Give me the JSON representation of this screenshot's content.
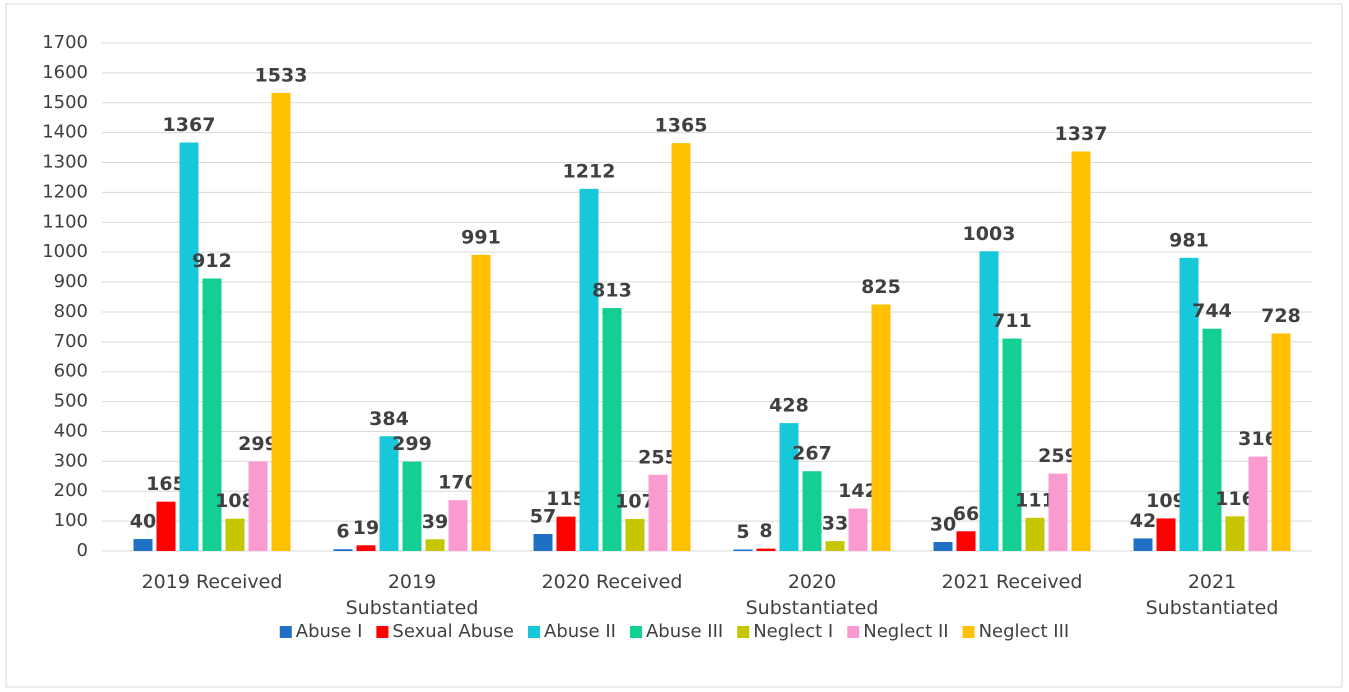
{
  "chart_data": {
    "type": "bar",
    "categories": [
      "2019 Received",
      "2019 Substantiated",
      "2020 Received",
      "2020 Substantiated",
      "2021 Received",
      "2021 Substantiated"
    ],
    "series": [
      {
        "name": "Abuse I",
        "color": "#1f6fc5",
        "values": [
          40,
          6,
          57,
          5,
          30,
          42
        ]
      },
      {
        "name": "Sexual Abuse",
        "color": "#ff0000",
        "values": [
          165,
          19,
          115,
          8,
          66,
          109
        ]
      },
      {
        "name": "Abuse II",
        "color": "#17c8d8",
        "values": [
          1367,
          384,
          1212,
          428,
          1003,
          981
        ]
      },
      {
        "name": "Abuse III",
        "color": "#13cf93",
        "values": [
          912,
          299,
          813,
          267,
          711,
          744
        ]
      },
      {
        "name": "Neglect I",
        "color": "#c6c600",
        "values": [
          108,
          39,
          107,
          33,
          111,
          116
        ]
      },
      {
        "name": "Neglect II",
        "color": "#f99bd0",
        "values": [
          299,
          170,
          255,
          142,
          259,
          316
        ]
      },
      {
        "name": "Neglect III",
        "color": "#ffc000",
        "values": [
          1533,
          991,
          1365,
          825,
          1337,
          728
        ]
      }
    ],
    "ylim": [
      0,
      1700
    ],
    "yticks": [
      0,
      100,
      200,
      300,
      400,
      500,
      600,
      700,
      800,
      900,
      1000,
      1100,
      1200,
      1300,
      1400,
      1500,
      1600,
      1700
    ],
    "grid": true,
    "legend": "bottom"
  }
}
